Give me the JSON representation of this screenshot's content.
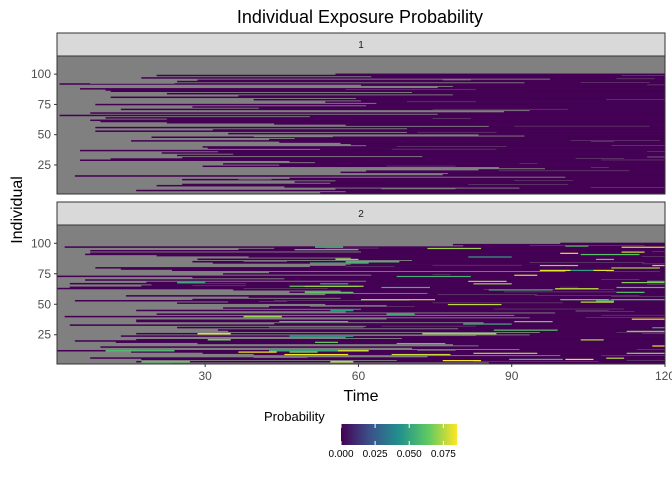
{
  "chart_data": {
    "type": "heatmap",
    "title": "Individual Exposure Probability",
    "xlabel": "Time",
    "ylabel": "Individual",
    "xlim": [
      1,
      120
    ],
    "ylim": [
      1,
      115
    ],
    "x_ticks": [
      30,
      60,
      90,
      120
    ],
    "y_ticks": [
      25,
      50,
      75,
      100
    ],
    "grid": false,
    "facets": [
      {
        "label": "1",
        "n_individuals": 100,
        "n_times": 120,
        "max_probability": 0.0
      },
      {
        "label": "2",
        "n_individuals": 100,
        "n_times": 120,
        "max_probability": 0.085
      }
    ],
    "missing_color": "#808080",
    "legend": {
      "title": "Probability",
      "placement": "bottom",
      "colorscale": "viridis",
      "range": [
        0.0,
        0.085
      ],
      "tick_values": [
        0.0,
        0.025,
        0.05,
        0.075
      ],
      "tick_labels": [
        "0.000",
        "0.025",
        "0.050",
        "0.075"
      ]
    }
  }
}
